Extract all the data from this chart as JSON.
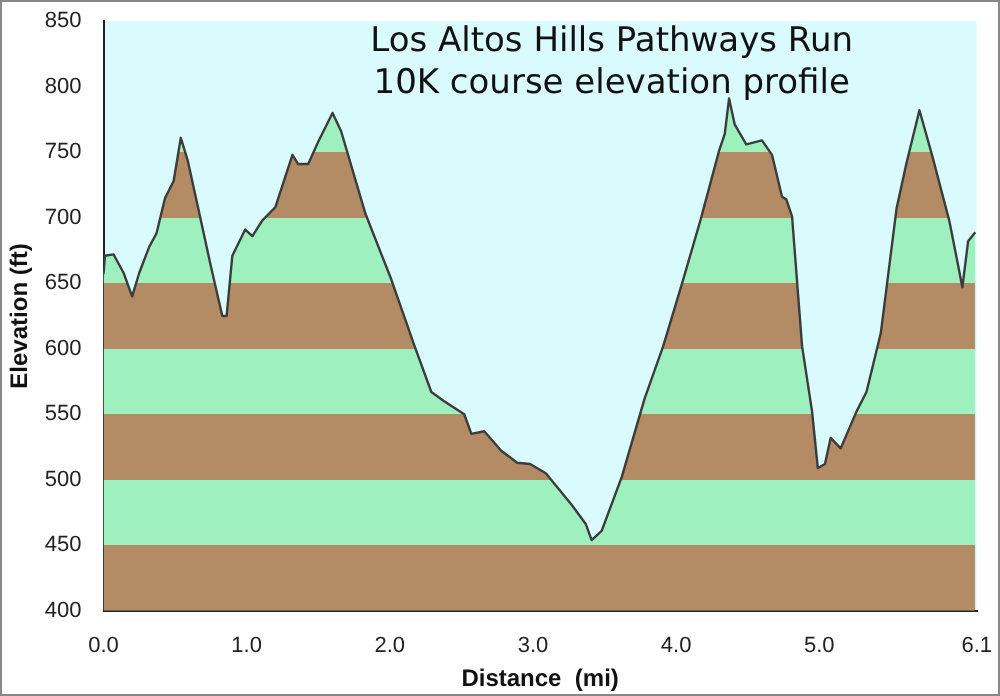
{
  "chart_data": {
    "type": "area",
    "title": "Los Altos Hills Pathways Run\n10K course elevation profile",
    "xlabel": "Distance  (mi)",
    "ylabel": "Elevation (ft)",
    "x": [
      0,
      0.01,
      0.07,
      0.14,
      0.2,
      0.25,
      0.32,
      0.37,
      0.43,
      0.49,
      0.54,
      0.59,
      0.67,
      0.75,
      0.83,
      0.86,
      0.9,
      0.99,
      1.04,
      1.11,
      1.2,
      1.32,
      1.36,
      1.43,
      1.5,
      1.6,
      1.66,
      1.83,
      2.01,
      2.17,
      2.29,
      2.38,
      2.52,
      2.57,
      2.66,
      2.78,
      2.89,
      2.98,
      3.09,
      3.27,
      3.37,
      3.41,
      3.48,
      3.62,
      3.78,
      3.91,
      4.05,
      4.17,
      4.3,
      4.34,
      4.37,
      4.41,
      4.49,
      4.6,
      4.67,
      4.74,
      4.77,
      4.81,
      4.88,
      4.95,
      4.99,
      5.04,
      5.08,
      5.15,
      5.26,
      5.33,
      5.43,
      5.54,
      5.61,
      5.7,
      5.79,
      5.91,
      6.0,
      6.04,
      6.09
    ],
    "series": [
      {
        "color": "#9ff0bf",
        "values": [
          657,
          671,
          672,
          658,
          640,
          658,
          678,
          688,
          715,
          728,
          761,
          743,
          703,
          663,
          625,
          625,
          671,
          691,
          686,
          698,
          708,
          748,
          741,
          741,
          758,
          780,
          766,
          703,
          653,
          603,
          567,
          560,
          550,
          535,
          537,
          522,
          513,
          512,
          505,
          481,
          466,
          454,
          461,
          502,
          562,
          602,
          653,
          698,
          751,
          764,
          791,
          771,
          756,
          759,
          748,
          716,
          714,
          701,
          602,
          552,
          509,
          512,
          532,
          524,
          552,
          567,
          612,
          707,
          742,
          782,
          747,
          697,
          647,
          682,
          689
        ]
      }
    ],
    "xlim": [
      0,
      6.1
    ],
    "xticks": [
      {
        "value": 0,
        "label": "0.0"
      },
      {
        "value": 1,
        "label": "1.0"
      },
      {
        "value": 2,
        "label": "2.0"
      },
      {
        "value": 3,
        "label": "3.0"
      },
      {
        "value": 4,
        "label": "4.0"
      },
      {
        "value": 5,
        "label": "5.0"
      },
      {
        "value": 6.1,
        "label": "6.1"
      }
    ],
    "ylim": [
      400,
      850
    ],
    "yticks": [
      400,
      450,
      500,
      550,
      600,
      650,
      700,
      750,
      800,
      850
    ],
    "grid": false,
    "legend": false,
    "marker": "none"
  }
}
